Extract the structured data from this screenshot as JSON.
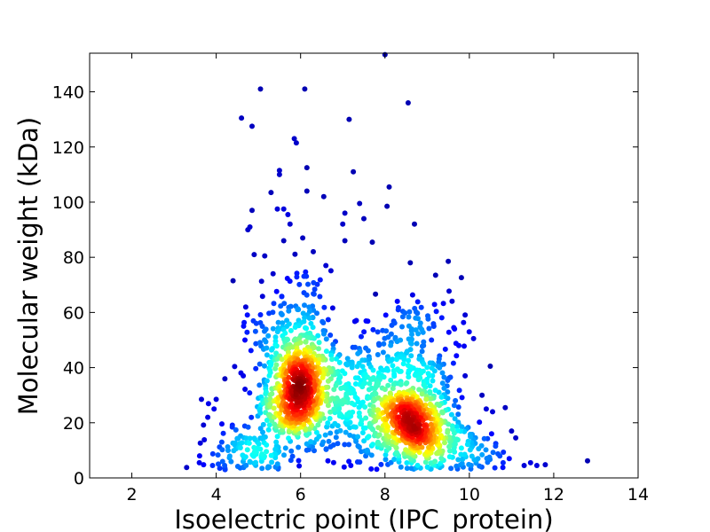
{
  "chart_data": {
    "type": "scatter",
    "title": "",
    "xlabel": "Isoelectric point (IPC_protein)",
    "ylabel": "Molecular weight (kDa)",
    "xlim": [
      1,
      14
    ],
    "ylim": [
      0,
      154
    ],
    "x_ticks": [
      2,
      4,
      6,
      8,
      10,
      12,
      14
    ],
    "y_ticks": [
      0,
      20,
      40,
      60,
      80,
      100,
      120,
      140
    ],
    "grid": false,
    "legend": "none",
    "colormap": "jet (point density)",
    "colors": {
      "low_density": "#00008f",
      "mid_density": "#7fff7f",
      "high_density": "#800000"
    },
    "points": [
      [
        3.3,
        3.8
      ],
      [
        3.6,
        5.5
      ],
      [
        3.7,
        4.8
      ],
      [
        3.65,
        28.5
      ],
      [
        3.8,
        22
      ],
      [
        3.95,
        25
      ],
      [
        4.0,
        28.5
      ],
      [
        4.05,
        5
      ],
      [
        4.2,
        4.5
      ],
      [
        4.4,
        71.5
      ],
      [
        4.6,
        130.5
      ],
      [
        4.65,
        55
      ],
      [
        4.7,
        62
      ],
      [
        4.75,
        90
      ],
      [
        4.8,
        91
      ],
      [
        4.85,
        97
      ],
      [
        4.85,
        127.5
      ],
      [
        4.9,
        81
      ],
      [
        4.95,
        56
      ],
      [
        5.05,
        141
      ],
      [
        5.15,
        80.5
      ],
      [
        5.3,
        103.5
      ],
      [
        5.45,
        97.5
      ],
      [
        5.5,
        110
      ],
      [
        5.5,
        111.5
      ],
      [
        5.6,
        97.5
      ],
      [
        5.6,
        86
      ],
      [
        5.7,
        95.5
      ],
      [
        5.75,
        92
      ],
      [
        5.85,
        123
      ],
      [
        5.9,
        121.5
      ],
      [
        6.05,
        87
      ],
      [
        6.1,
        141
      ],
      [
        6.15,
        104
      ],
      [
        6.15,
        112.5
      ],
      [
        6.3,
        82
      ],
      [
        6.55,
        102
      ],
      [
        6.6,
        77
      ],
      [
        7.0,
        92
      ],
      [
        7.05,
        96
      ],
      [
        7.05,
        86
      ],
      [
        7.15,
        130
      ],
      [
        7.25,
        111
      ],
      [
        7.4,
        99.5
      ],
      [
        7.5,
        94
      ],
      [
        7.7,
        85.5
      ],
      [
        8.0,
        153.5
      ],
      [
        8.05,
        98.5
      ],
      [
        8.1,
        105.5
      ],
      [
        8.55,
        136
      ],
      [
        8.6,
        78
      ],
      [
        8.7,
        92
      ],
      [
        9.2,
        73.5
      ],
      [
        9.5,
        78.5
      ],
      [
        9.65,
        54
      ],
      [
        9.75,
        48
      ],
      [
        9.9,
        37
      ],
      [
        10.1,
        50.5
      ],
      [
        10.3,
        30
      ],
      [
        10.4,
        25
      ],
      [
        10.55,
        24
      ],
      [
        10.85,
        25.5
      ],
      [
        10.8,
        5.5
      ],
      [
        11.0,
        17
      ],
      [
        11.1,
        14.5
      ],
      [
        11.3,
        4.5
      ],
      [
        11.45,
        5.5
      ],
      [
        11.6,
        4.5
      ],
      [
        11.8,
        4.8
      ],
      [
        12.8,
        6.2
      ]
    ],
    "density_clusters": [
      {
        "x": 5.9,
        "y": 30,
        "sx": 0.42,
        "sy": 9,
        "n": 500
      },
      {
        "x": 8.6,
        "y": 20,
        "sx": 0.48,
        "sy": 8,
        "n": 500
      },
      {
        "x": 7.2,
        "y": 25,
        "sx": 0.9,
        "sy": 12,
        "n": 300
      },
      {
        "x": 5.8,
        "y": 48,
        "sx": 0.5,
        "sy": 7,
        "n": 150
      },
      {
        "x": 8.3,
        "y": 40,
        "sx": 0.7,
        "sy": 8,
        "n": 150
      },
      {
        "x": 4.8,
        "y": 10,
        "sx": 0.45,
        "sy": 5,
        "n": 100
      },
      {
        "x": 9.9,
        "y": 10,
        "sx": 0.5,
        "sy": 6,
        "n": 100
      },
      {
        "x": 6.0,
        "y": 65,
        "sx": 0.5,
        "sy": 9,
        "n": 60
      },
      {
        "x": 8.7,
        "y": 55,
        "sx": 0.8,
        "sy": 7,
        "n": 60
      }
    ]
  }
}
